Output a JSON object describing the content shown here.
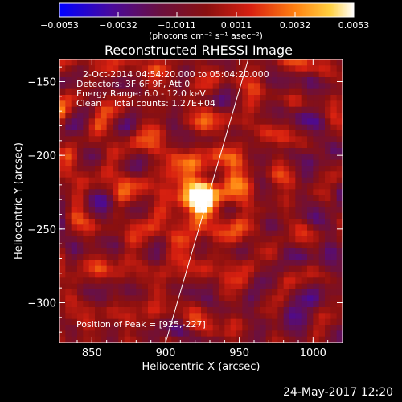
{
  "chart_data": {
    "type": "heatmap",
    "title": "Reconstructed RHESSI Image",
    "xlabel": "Heliocentric X (arcsec)",
    "ylabel": "Heliocentric Y (arcsec)",
    "xlim": [
      828,
      1020
    ],
    "ylim": [
      -327,
      -135
    ],
    "x_ticks": [
      "850",
      "900",
      "950",
      "1000"
    ],
    "y_ticks": [
      "-150",
      "-200",
      "-250",
      "-300"
    ],
    "colorbar": {
      "label": "(photons cm⁻² s⁻¹ asec⁻²)",
      "range": [
        -0.0053,
        0.0053
      ],
      "tick_labels": [
        "-0.0053",
        "-0.0032",
        "-0.0011",
        "0.0011",
        "0.0032",
        "0.0053"
      ]
    },
    "annotations": [
      "2-Oct-2014 04:54:20.000 to 05:04:20.000",
      "Detectors: 3F 6F 9F, Att 0",
      "Energy Range: 6.0 - 12.0 keV",
      "Clean    Total counts: 1.27E+04"
    ],
    "peak_annotation": "Position of Peak = [925,-227]",
    "peak": {
      "x": 925,
      "y": -227
    },
    "limb_line": {
      "x": [
        900,
        956
      ],
      "y": [
        -327,
        -135
      ]
    },
    "grid": false
  },
  "footer": {
    "date_stamp": "24-May-2017 12:20"
  },
  "colors": {
    "background": "#000000",
    "text": "#ffffff",
    "limb": "#ffffff"
  }
}
